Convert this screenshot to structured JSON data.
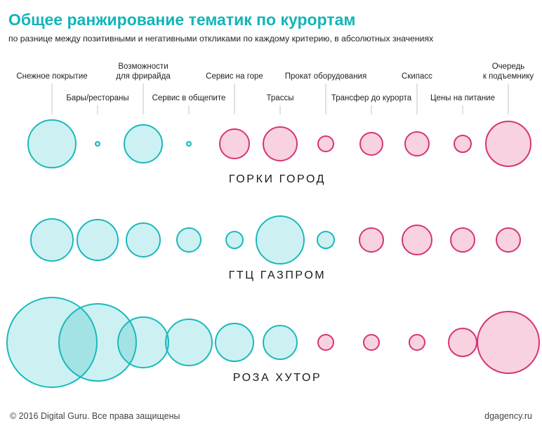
{
  "header": {
    "title": "Общее ранжирование тематик по курортам",
    "subtitle": "по разнице между позитивными и негативными откликами по каждому критерию, в абсолютных значениях"
  },
  "footer": {
    "copyright": "© 2016 Digital Guru. Все права защищены",
    "site": "dgagency.ru"
  },
  "colors": {
    "positive_fill": "#cdf1f2",
    "positive_stroke": "#1ab9bd",
    "positive_overlap": "#a3e3e5",
    "negative_fill": "#f8d2e0",
    "negative_stroke": "#d63476",
    "title": "#13b4b8"
  },
  "chart_data": {
    "type": "bubble",
    "categories": [
      {
        "label_lines": [
          "Снежное покрытие"
        ]
      },
      {
        "label_lines": [
          "Бары/рестораны"
        ]
      },
      {
        "label_lines": [
          "Возможности",
          "для фрирайда"
        ]
      },
      {
        "label_lines": [
          "Сервис в общепите"
        ]
      },
      {
        "label_lines": [
          "Сервис на горе"
        ]
      },
      {
        "label_lines": [
          "Трассы"
        ]
      },
      {
        "label_lines": [
          "Прокат оборудования"
        ]
      },
      {
        "label_lines": [
          "Трансфер до курорта"
        ]
      },
      {
        "label_lines": [
          "Скипасс"
        ]
      },
      {
        "label_lines": [
          "Цены на питание"
        ]
      },
      {
        "label_lines": [
          "Очередь",
          "к подъемнику"
        ]
      }
    ],
    "series": [
      {
        "name": "ГОРКИ ГОРОД",
        "values": [
          34,
          3,
          27,
          3,
          21,
          24,
          11,
          16,
          17,
          12,
          32
        ],
        "sign": [
          "positive",
          "positive",
          "positive",
          "positive",
          "negative",
          "negative",
          "negative",
          "negative",
          "negative",
          "negative",
          "negative"
        ]
      },
      {
        "name": "ГТЦ ГАЗПРОМ",
        "values": [
          30,
          29,
          24,
          17,
          12,
          34,
          12,
          17,
          21,
          17,
          17
        ],
        "sign": [
          "positive",
          "positive",
          "positive",
          "positive",
          "positive",
          "positive",
          "positive",
          "negative",
          "negative",
          "negative",
          "negative"
        ]
      },
      {
        "name": "РОЗА ХУТОР",
        "values": [
          64,
          55,
          36,
          33,
          27,
          24,
          11,
          11,
          11,
          20,
          44
        ],
        "sign": [
          "positive",
          "positive",
          "positive",
          "positive",
          "positive",
          "positive",
          "negative",
          "negative",
          "negative",
          "negative",
          "negative"
        ]
      }
    ],
    "legend": "none"
  }
}
